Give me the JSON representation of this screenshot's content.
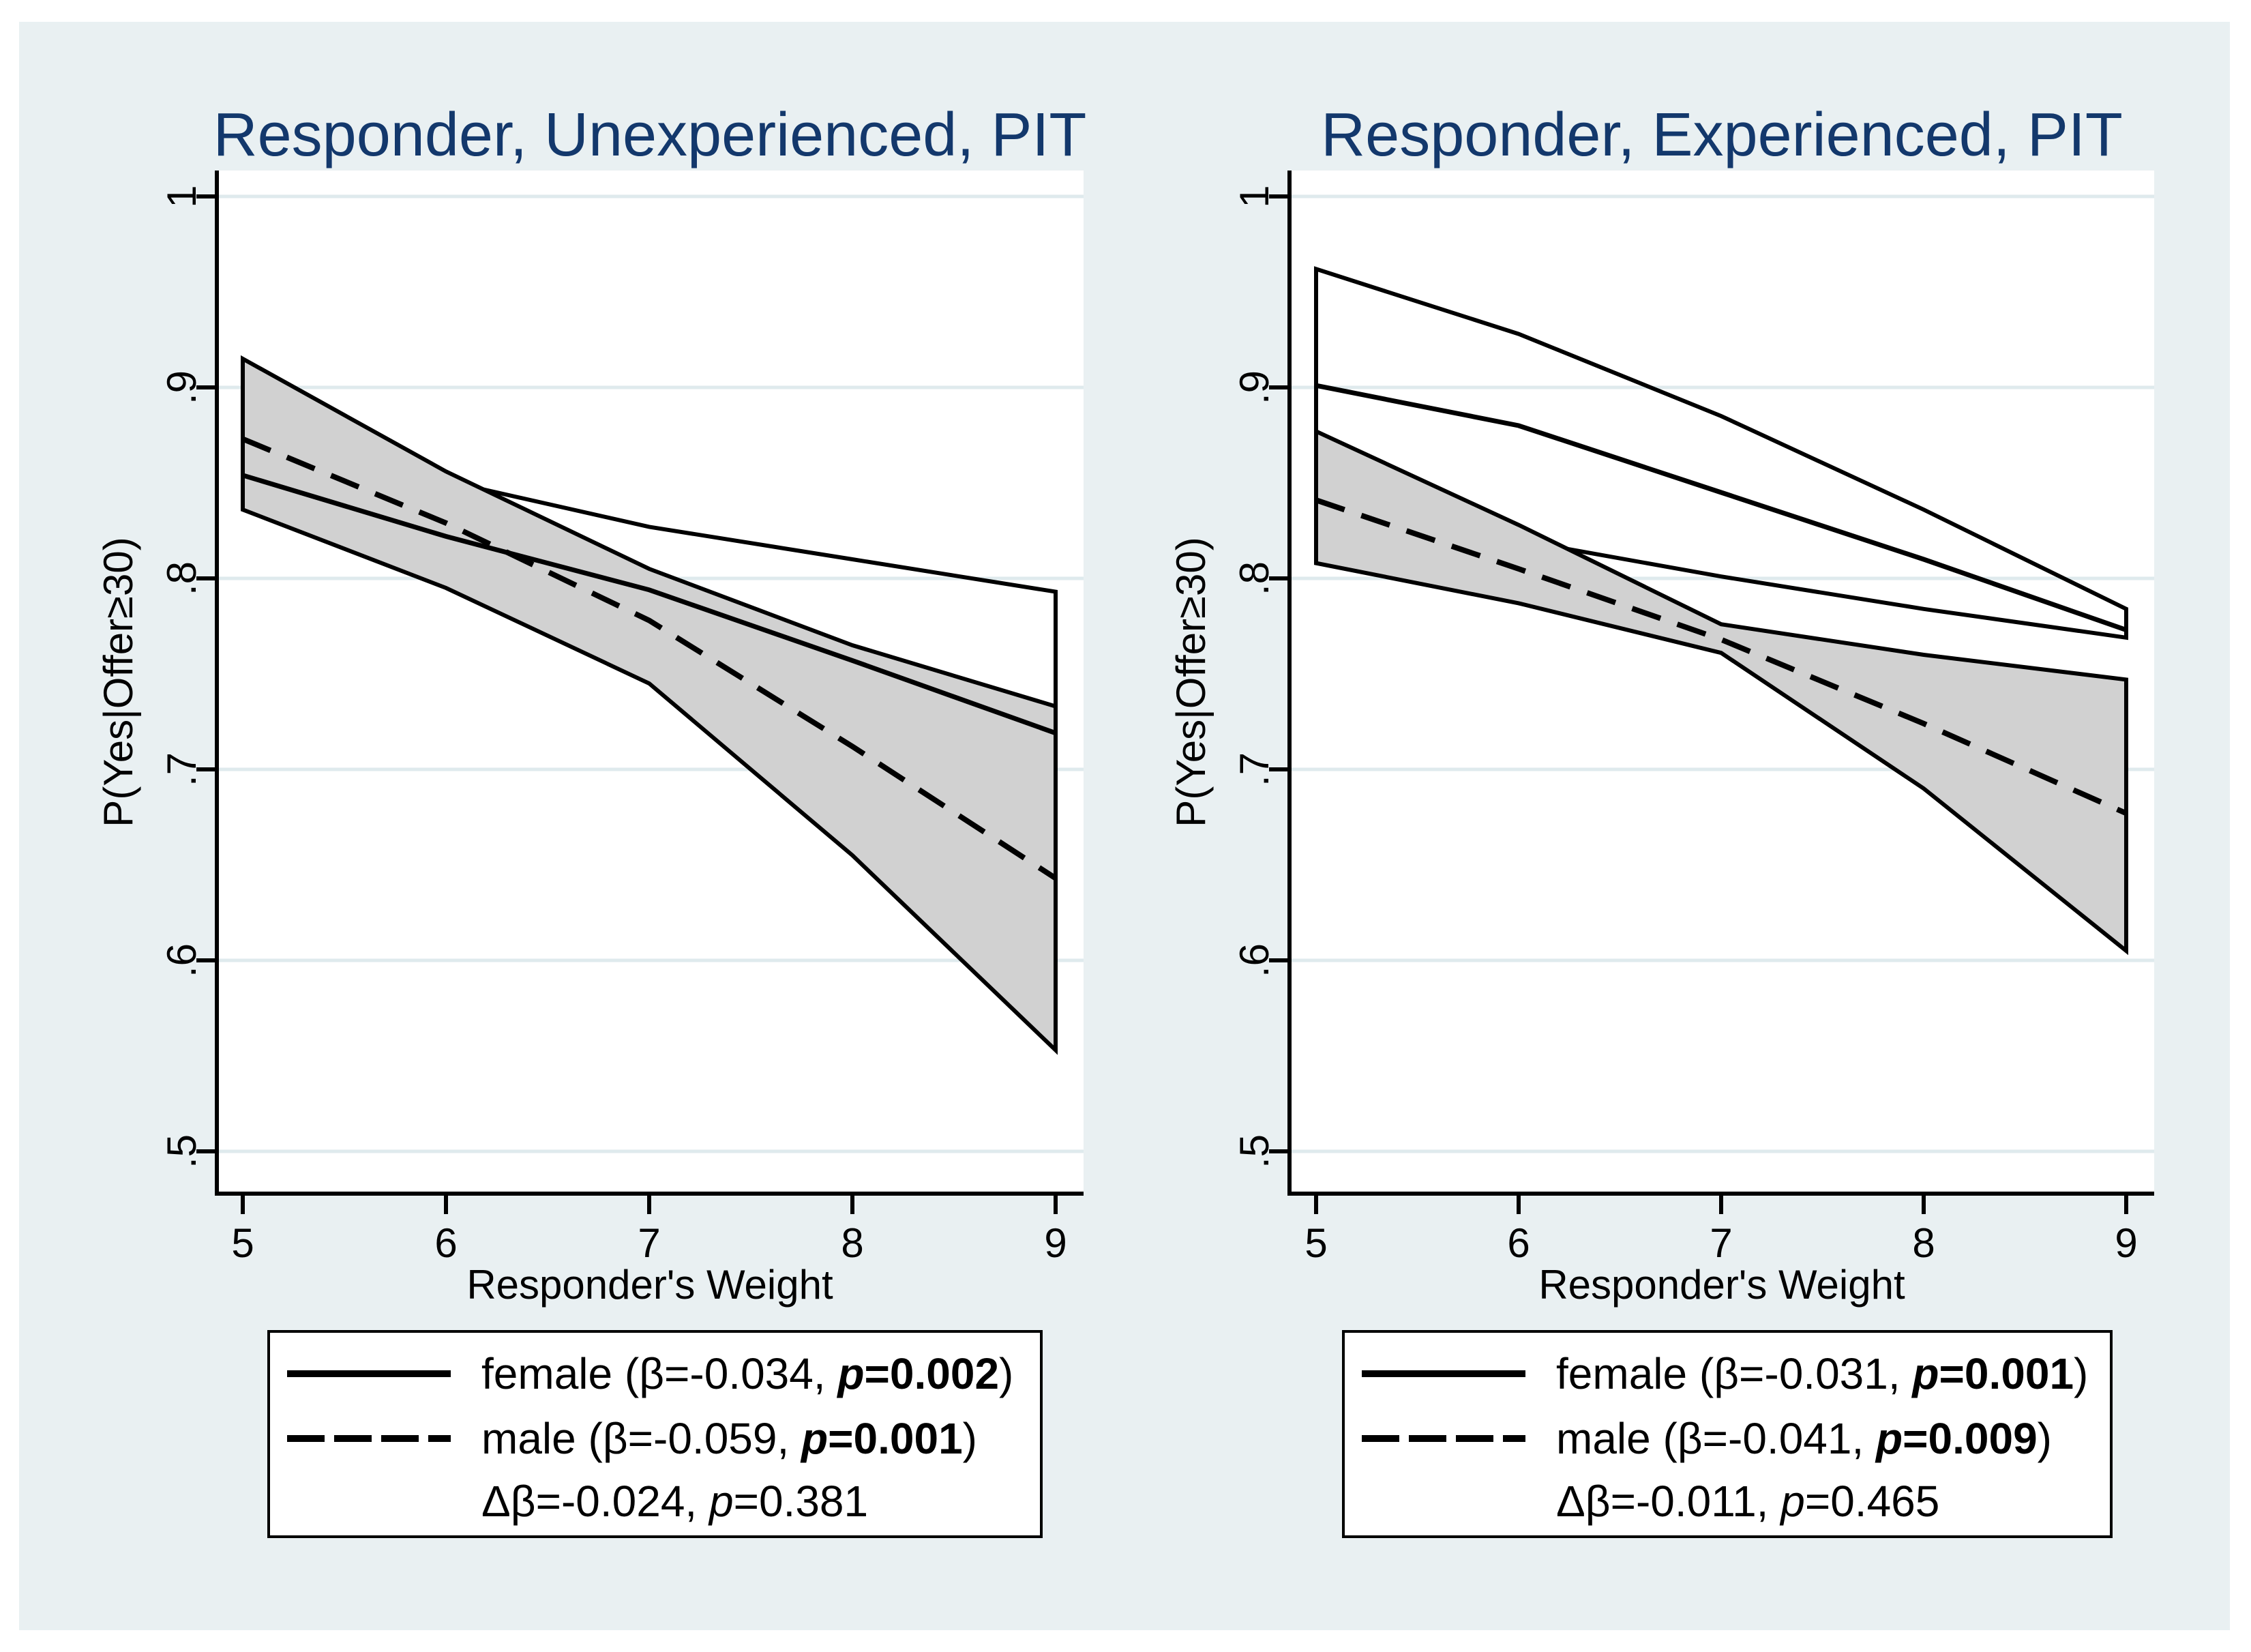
{
  "figure": {
    "canvas_bg": "#e9f0f2",
    "plot_bg": "#ffffff",
    "grid_color": "#dfeaed",
    "axis_color": "#000000",
    "title_color": "#13386c",
    "band_fill": "#d1d1d1",
    "line_color": "#000000"
  },
  "chart_data": [
    {
      "type": "line",
      "title": "Responder, Unexperienced, PIT",
      "xlabel": "Responder's Weight",
      "ylabel": "P(Yes|Offer≥30)",
      "x": [
        5,
        6,
        7,
        8,
        9
      ],
      "xtick_labels": [
        "5",
        "6",
        "7",
        "8",
        "9"
      ],
      "ytick_values": [
        1,
        0.9,
        0.8,
        0.7,
        0.6,
        0.5
      ],
      "ytick_labels": [
        "1",
        ".9",
        ".8",
        ".7",
        ".6",
        ".5"
      ],
      "ylim": [
        0.5,
        1
      ],
      "grid": true,
      "legend_position": "below",
      "series": [
        {
          "name": "female",
          "line": "solid",
          "values": [
            0.854,
            0.822,
            0.794,
            0.757,
            0.719
          ],
          "ci_upper": [
            0.913,
            0.851,
            0.827,
            0.81,
            0.793
          ],
          "ci_lower": [
            0.84,
            0.8,
            0.76,
            0.7,
            0.646
          ],
          "ci_fill": "none"
        },
        {
          "name": "male",
          "line": "dashed",
          "values": [
            0.873,
            0.829,
            0.778,
            0.712,
            0.643
          ],
          "ci_upper": [
            0.915,
            0.856,
            0.805,
            0.765,
            0.733
          ],
          "ci_lower": [
            0.836,
            0.795,
            0.745,
            0.655,
            0.553
          ],
          "ci_fill": "#d1d1d1"
        }
      ],
      "legend_rows": [
        {
          "sample": "solid",
          "prefix": "female (β=-0.034, ",
          "p": "p",
          "p_rest": "=0.002",
          "suffix": ")"
        },
        {
          "sample": "dashed",
          "prefix": "male (β=-0.059, ",
          "p": "p",
          "p_rest": "=0.001",
          "suffix": ")"
        },
        {
          "sample": "none",
          "prefix": "Δβ=-0.024, ",
          "p": "p",
          "p_rest": "=0.381",
          "suffix": ""
        }
      ]
    },
    {
      "type": "line",
      "title": "Responder, Experienced, PIT",
      "xlabel": "Responder's Weight",
      "ylabel": "P(Yes|Offer≥30)",
      "x": [
        5,
        6,
        7,
        8,
        9
      ],
      "xtick_labels": [
        "5",
        "6",
        "7",
        "8",
        "9"
      ],
      "ytick_values": [
        1,
        0.9,
        0.8,
        0.7,
        0.6,
        0.5
      ],
      "ytick_labels": [
        "1",
        ".9",
        ".8",
        ".7",
        ".6",
        ".5"
      ],
      "ylim": [
        0.5,
        1
      ],
      "grid": true,
      "legend_position": "below",
      "series": [
        {
          "name": "female",
          "line": "solid",
          "values": [
            0.901,
            0.88,
            0.845,
            0.81,
            0.773
          ],
          "ci_upper": [
            0.962,
            0.928,
            0.885,
            0.836,
            0.784
          ],
          "ci_lower": [
            0.84,
            0.82,
            0.801,
            0.784,
            0.769
          ],
          "ci_fill": "none"
        },
        {
          "name": "male",
          "line": "dashed",
          "values": [
            0.841,
            0.805,
            0.768,
            0.724,
            0.677
          ],
          "ci_upper": [
            0.877,
            0.828,
            0.776,
            0.76,
            0.747
          ],
          "ci_lower": [
            0.808,
            0.787,
            0.761,
            0.69,
            0.605
          ],
          "ci_fill": "#d1d1d1"
        }
      ],
      "legend_rows": [
        {
          "sample": "solid",
          "prefix": "female (β=-0.031, ",
          "p": "p",
          "p_rest": "=0.001",
          "suffix": ")"
        },
        {
          "sample": "dashed",
          "prefix": "male (β=-0.041, ",
          "p": "p",
          "p_rest": "=0.009",
          "suffix": ")"
        },
        {
          "sample": "none",
          "prefix": "Δβ=-0.011, ",
          "p": "p",
          "p_rest": "=0.465",
          "suffix": ""
        }
      ]
    }
  ]
}
